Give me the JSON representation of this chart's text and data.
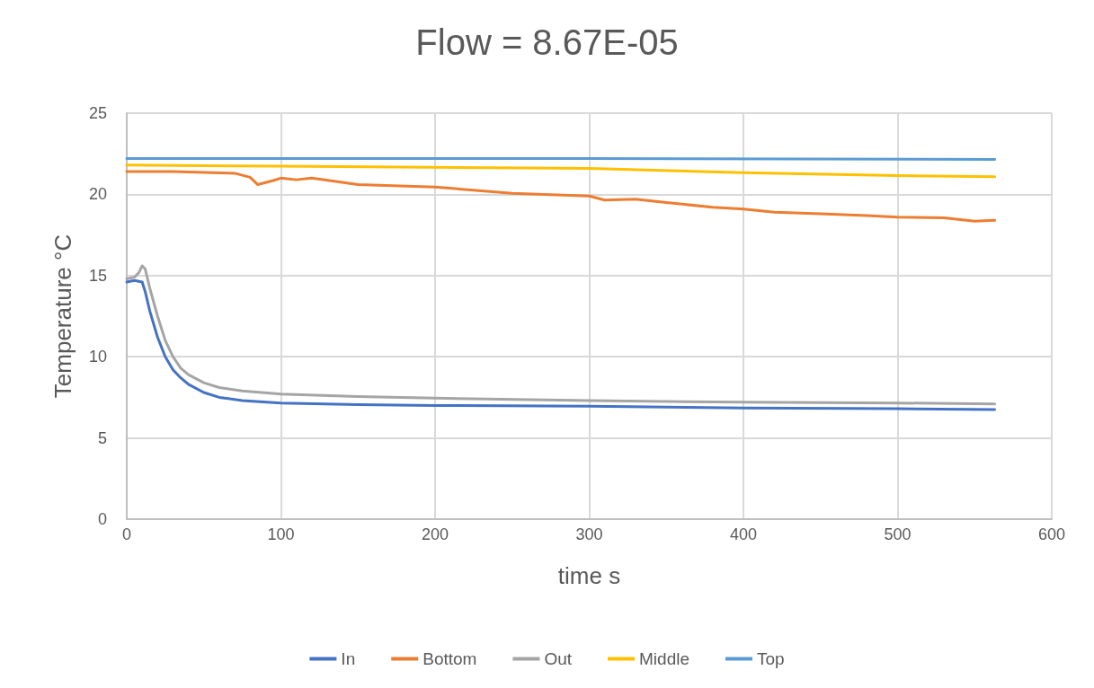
{
  "chart_data": {
    "type": "line",
    "title": "Flow = 8.67E-05",
    "xlabel": "time s",
    "ylabel": "Temperature °C",
    "xlim": [
      0,
      600
    ],
    "xticks": [
      0,
      100,
      200,
      300,
      400,
      500,
      600
    ],
    "ylim": [
      0,
      25
    ],
    "yticks": [
      0,
      5,
      10,
      15,
      20,
      25
    ],
    "grid": true,
    "legend": "bottom",
    "marker": "none",
    "line_style": "solid",
    "series": [
      {
        "name": "In",
        "color": "#4472c4",
        "x": [
          0,
          5,
          10,
          12,
          15,
          20,
          25,
          30,
          35,
          40,
          50,
          60,
          75,
          100,
          150,
          200,
          300,
          400,
          500,
          563
        ],
        "values": [
          14.6,
          14.7,
          14.6,
          14.0,
          12.8,
          11.2,
          10.0,
          9.2,
          8.7,
          8.3,
          7.8,
          7.5,
          7.3,
          7.15,
          7.05,
          7.0,
          6.95,
          6.85,
          6.8,
          6.75
        ]
      },
      {
        "name": "Bottom",
        "color": "#ed7d31",
        "x": [
          0,
          30,
          70,
          80,
          85,
          95,
          100,
          110,
          120,
          150,
          200,
          250,
          300,
          310,
          330,
          350,
          380,
          400,
          420,
          450,
          480,
          500,
          530,
          550,
          563
        ],
        "values": [
          21.4,
          21.4,
          21.3,
          21.05,
          20.6,
          20.85,
          21.0,
          20.9,
          21.0,
          20.6,
          20.45,
          20.07,
          19.9,
          19.65,
          19.7,
          19.5,
          19.2,
          19.1,
          18.9,
          18.8,
          18.7,
          18.6,
          18.55,
          18.35,
          18.4
        ]
      },
      {
        "name": "Out",
        "color": "#a5a5a5",
        "x": [
          0,
          5,
          8,
          10,
          12,
          15,
          20,
          25,
          30,
          35,
          40,
          50,
          60,
          75,
          100,
          150,
          200,
          300,
          400,
          500,
          563
        ],
        "values": [
          14.8,
          14.9,
          15.2,
          15.6,
          15.4,
          14.2,
          12.5,
          11.0,
          10.0,
          9.3,
          8.9,
          8.4,
          8.1,
          7.9,
          7.7,
          7.55,
          7.45,
          7.3,
          7.2,
          7.15,
          7.1
        ]
      },
      {
        "name": "Middle",
        "color": "#ffc000",
        "x": [
          0,
          100,
          300,
          400,
          500,
          563
        ],
        "values": [
          21.8,
          21.73,
          21.6,
          21.33,
          21.15,
          21.08
        ]
      },
      {
        "name": "Top",
        "color": "#5b9bd5",
        "x": [
          0,
          300,
          563
        ],
        "values": [
          22.2,
          22.2,
          22.15
        ]
      }
    ]
  }
}
